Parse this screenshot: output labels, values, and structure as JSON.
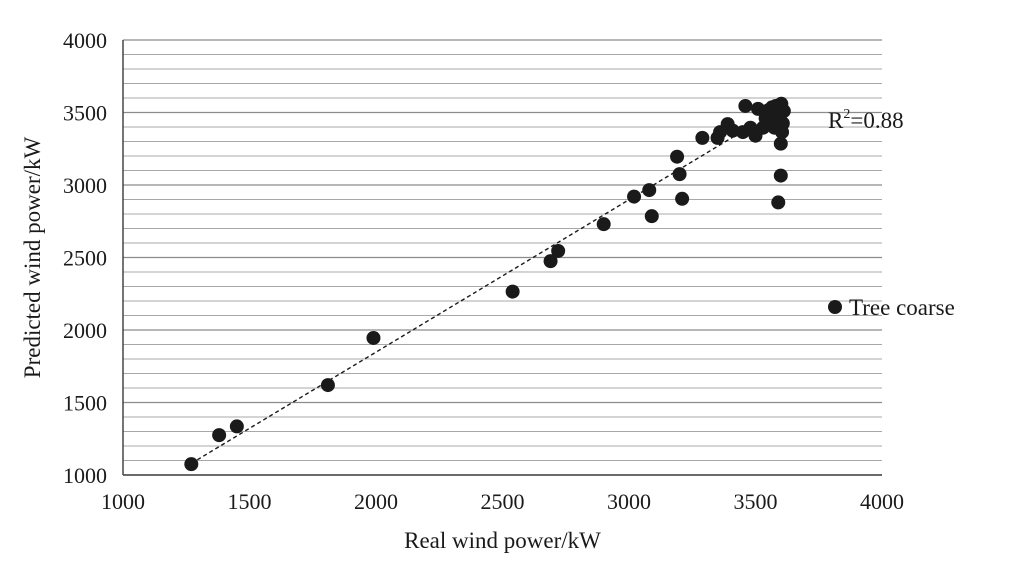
{
  "chart_data": {
    "type": "scatter",
    "xlabel": "Real wind power/kW",
    "ylabel": "Predicted wind power/kW",
    "xlim": [
      1000,
      4000
    ],
    "ylim": [
      1000,
      4000
    ],
    "x_ticks": [
      "1000",
      "1500",
      "2000",
      "2500",
      "3000",
      "3500",
      "4000"
    ],
    "y_ticks": [
      "1000",
      "1500",
      "2000",
      "2500",
      "3000",
      "3500",
      "4000"
    ],
    "y_minor_step": 100,
    "grid": "horizontal",
    "legend": {
      "position": "right",
      "label": "Tree coarse"
    },
    "annotation": {
      "prefix": "R",
      "superscript": "2",
      "value": "=0.88"
    },
    "trendline": {
      "style": "dashed",
      "x": [
        1270,
        3420
      ],
      "y": [
        1080,
        3340
      ]
    },
    "series": [
      {
        "name": "Tree coarse",
        "color": "#1a1a1a",
        "points": [
          [
            1270,
            1075
          ],
          [
            1380,
            1275
          ],
          [
            1450,
            1335
          ],
          [
            1810,
            1620
          ],
          [
            1990,
            1945
          ],
          [
            2540,
            2265
          ],
          [
            2690,
            2475
          ],
          [
            2720,
            2545
          ],
          [
            2900,
            2730
          ],
          [
            3020,
            2920
          ],
          [
            3080,
            2965
          ],
          [
            3090,
            2785
          ],
          [
            3190,
            3195
          ],
          [
            3200,
            3075
          ],
          [
            3210,
            2905
          ],
          [
            3290,
            3325
          ],
          [
            3350,
            3325
          ],
          [
            3360,
            3365
          ],
          [
            3390,
            3420
          ],
          [
            3410,
            3375
          ],
          [
            3450,
            3365
          ],
          [
            3460,
            3545
          ],
          [
            3480,
            3395
          ],
          [
            3500,
            3340
          ],
          [
            3510,
            3525
          ],
          [
            3530,
            3395
          ],
          [
            3540,
            3460
          ],
          [
            3550,
            3515
          ],
          [
            3555,
            3430
          ],
          [
            3560,
            3490
          ],
          [
            3565,
            3535
          ],
          [
            3570,
            3455
          ],
          [
            3575,
            3395
          ],
          [
            3580,
            3545
          ],
          [
            3585,
            3510
          ],
          [
            3590,
            2880
          ],
          [
            3595,
            3475
          ],
          [
            3600,
            3285
          ],
          [
            3600,
            3065
          ],
          [
            3602,
            3560
          ],
          [
            3605,
            3365
          ],
          [
            3608,
            3425
          ],
          [
            3612,
            3510
          ]
        ]
      }
    ]
  }
}
